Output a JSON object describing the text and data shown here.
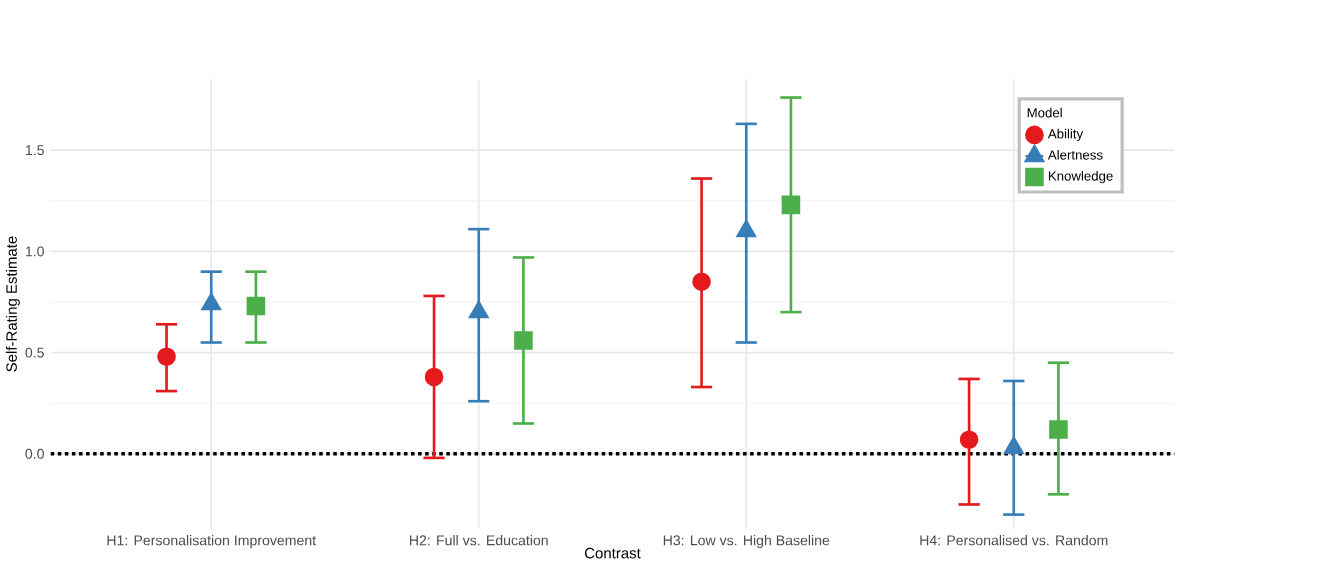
{
  "chart_data": {
    "type": "scatter",
    "xlabel": "Contrast",
    "ylabel": "Self-Rating Estimate",
    "legend_title": "Model",
    "categories": [
      "H1: Personalisation Improvement",
      "H2: Full vs. Education",
      "H3: Low vs. High Baseline",
      "H4: Personalised vs. Random"
    ],
    "series": [
      {
        "name": "Ability",
        "color": "#e41a1c",
        "marker": "circle",
        "values": [
          0.48,
          0.38,
          0.85,
          0.07
        ],
        "errors": [
          [
            0.31,
            0.64
          ],
          [
            -0.02,
            0.78
          ],
          [
            0.33,
            1.36
          ],
          [
            -0.25,
            0.37
          ]
        ]
      },
      {
        "name": "Alertness",
        "color": "#377eb8",
        "marker": "triangle",
        "values": [
          0.74,
          0.7,
          1.1,
          0.03
        ],
        "errors": [
          [
            0.55,
            0.9
          ],
          [
            0.26,
            1.11
          ],
          [
            0.55,
            1.63
          ],
          [
            -0.3,
            0.36
          ]
        ]
      },
      {
        "name": "Knowledge",
        "color": "#4daf4a",
        "marker": "square",
        "values": [
          0.73,
          0.56,
          1.23,
          0.12
        ],
        "errors": [
          [
            0.55,
            0.9
          ],
          [
            0.15,
            0.97
          ],
          [
            0.7,
            1.76
          ],
          [
            -0.2,
            0.45
          ]
        ]
      }
    ],
    "ylim": [
      -0.37,
      1.85
    ],
    "yticks": [
      {
        "value": 0,
        "label": "0.0"
      },
      {
        "value": 0.5,
        "label": "0.5"
      },
      {
        "value": 1,
        "label": "1.0"
      },
      {
        "value": 1.5,
        "label": "1.5"
      }
    ],
    "ref_lines": [
      {
        "axis": "y",
        "value": 0,
        "color": "#000000",
        "line_style": "dotted"
      }
    ],
    "grid": true,
    "legend": "top right"
  }
}
